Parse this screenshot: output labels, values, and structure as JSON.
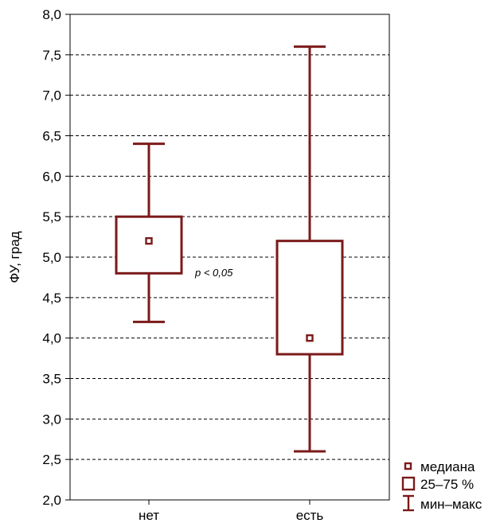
{
  "chart_data": {
    "type": "boxplot",
    "ylabel": "ФУ, град",
    "xlabel": "",
    "ylim": [
      2.0,
      8.0
    ],
    "yticks": [
      "2,0",
      "2,5",
      "3,0",
      "3,5",
      "4,0",
      "4,5",
      "5,0",
      "5,5",
      "6,0",
      "6,5",
      "7,0",
      "7,5",
      "8,0"
    ],
    "ytick_values": [
      2.0,
      2.5,
      3.0,
      3.5,
      4.0,
      4.5,
      5.0,
      5.5,
      6.0,
      6.5,
      7.0,
      7.5,
      8.0
    ],
    "grid": "horizontal dashed",
    "categories": [
      "нет",
      "есть"
    ],
    "boxes": [
      {
        "category": "нет",
        "min": 4.2,
        "q1": 4.8,
        "median": 5.2,
        "q3": 5.5,
        "max": 6.4
      },
      {
        "category": "есть",
        "min": 2.6,
        "q1": 3.8,
        "median": 4.0,
        "q3": 5.2,
        "max": 7.6
      }
    ],
    "annotation": "p < 0,05",
    "legend": {
      "placement": "bottom-right",
      "entries": [
        "медиана",
        "25–75 %",
        "мин–макс"
      ]
    },
    "color": "#7b1a1a"
  }
}
